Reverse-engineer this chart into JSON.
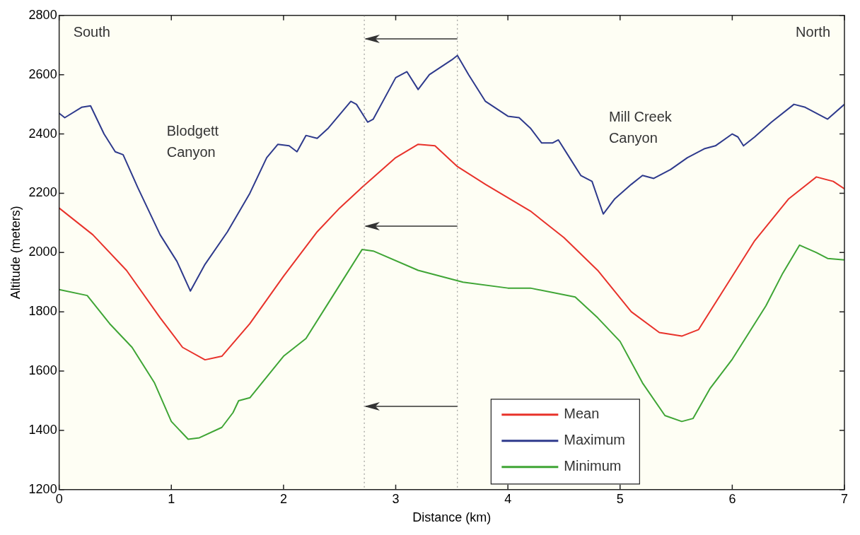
{
  "chart_data": {
    "type": "line",
    "xlabel": "Distance (km)",
    "ylabel": "Altitude (meters)",
    "xlim": [
      0,
      7
    ],
    "xticks": [
      0,
      1,
      2,
      3,
      4,
      5,
      6,
      7
    ],
    "ylim": [
      1200,
      2800
    ],
    "yticks": [
      1200,
      1400,
      1600,
      1800,
      2000,
      2200,
      2400,
      2600,
      2800
    ],
    "grid": false,
    "legend": "bottom right",
    "marker": "none",
    "line_style": "solid",
    "series": [
      {
        "name": "Mean",
        "color": "#e8322a",
        "x": [
          0,
          0.3,
          0.6,
          0.9,
          1.1,
          1.3,
          1.45,
          1.7,
          2.0,
          2.3,
          2.5,
          2.7,
          3.0,
          3.2,
          3.35,
          3.55,
          3.8,
          4.2,
          4.5,
          4.8,
          5.1,
          5.35,
          5.55,
          5.7,
          5.9,
          6.2,
          6.5,
          6.75,
          6.9,
          7.0
        ],
        "values": [
          2150,
          2060,
          1940,
          1780,
          1680,
          1638,
          1650,
          1760,
          1920,
          2070,
          2150,
          2220,
          2320,
          2365,
          2360,
          2290,
          2230,
          2140,
          2050,
          1940,
          1800,
          1730,
          1718,
          1740,
          1860,
          2040,
          2180,
          2255,
          2240,
          2215
        ]
      },
      {
        "name": "Maximum",
        "color": "#2e3a8c",
        "x": [
          0,
          0.05,
          0.2,
          0.28,
          0.4,
          0.5,
          0.57,
          0.7,
          0.9,
          1.05,
          1.17,
          1.3,
          1.5,
          1.7,
          1.85,
          1.95,
          2.05,
          2.12,
          2.2,
          2.3,
          2.4,
          2.6,
          2.65,
          2.75,
          2.8,
          3.0,
          3.1,
          3.2,
          3.3,
          3.5,
          3.55,
          3.65,
          3.8,
          4.0,
          4.1,
          4.2,
          4.3,
          4.4,
          4.45,
          4.55,
          4.65,
          4.75,
          4.85,
          4.95,
          5.1,
          5.2,
          5.3,
          5.45,
          5.6,
          5.75,
          5.85,
          6.0,
          6.05,
          6.1,
          6.2,
          6.35,
          6.55,
          6.65,
          6.85,
          7.0
        ],
        "values": [
          2470,
          2455,
          2490,
          2495,
          2400,
          2340,
          2330,
          2220,
          2060,
          1970,
          1870,
          1960,
          2070,
          2200,
          2320,
          2365,
          2360,
          2340,
          2395,
          2385,
          2420,
          2510,
          2500,
          2440,
          2450,
          2590,
          2610,
          2550,
          2600,
          2650,
          2665,
          2600,
          2510,
          2460,
          2455,
          2420,
          2370,
          2370,
          2380,
          2320,
          2260,
          2240,
          2130,
          2180,
          2230,
          2260,
          2250,
          2280,
          2320,
          2350,
          2360,
          2400,
          2390,
          2360,
          2390,
          2440,
          2500,
          2490,
          2450,
          2500
        ]
      },
      {
        "name": "Minimum",
        "color": "#3fa535",
        "x": [
          0,
          0.25,
          0.45,
          0.65,
          0.85,
          1.0,
          1.15,
          1.25,
          1.45,
          1.55,
          1.6,
          1.7,
          2.0,
          2.2,
          2.4,
          2.55,
          2.7,
          2.8,
          3.2,
          3.6,
          4.0,
          4.2,
          4.6,
          4.8,
          5.0,
          5.2,
          5.4,
          5.55,
          5.65,
          5.8,
          6.0,
          6.3,
          6.45,
          6.6,
          6.75,
          6.85,
          7.0
        ],
        "values": [
          1875,
          1855,
          1760,
          1680,
          1560,
          1430,
          1370,
          1375,
          1410,
          1460,
          1500,
          1510,
          1650,
          1710,
          1830,
          1920,
          2010,
          2005,
          1940,
          1900,
          1880,
          1880,
          1850,
          1780,
          1700,
          1560,
          1450,
          1430,
          1440,
          1540,
          1640,
          1820,
          1930,
          2025,
          2000,
          1980,
          1975
        ]
      }
    ],
    "ref_lines": [
      {
        "axis": "x",
        "value": 2.72,
        "line_style": "dotted",
        "color": "#888888"
      },
      {
        "axis": "x",
        "value": 3.55,
        "line_style": "dotted",
        "color": "#888888"
      }
    ],
    "annotations": [
      "South",
      "North",
      "Blodgett Canyon",
      "Mill Creek Canyon"
    ]
  }
}
